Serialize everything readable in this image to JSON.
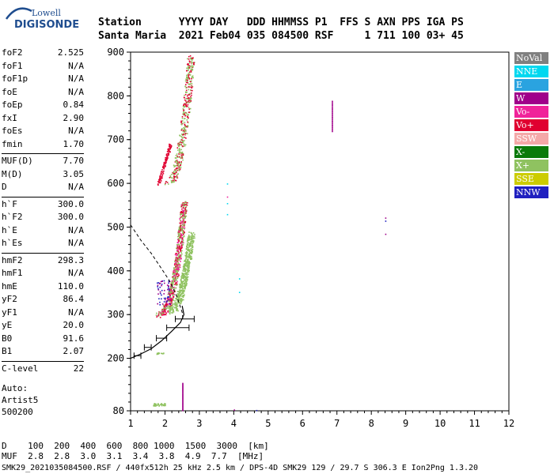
{
  "logo": {
    "top": "Lowell",
    "bottom": "DIGISONDE"
  },
  "header": {
    "row1": "Station      YYYY DAY   DDD HHMMSS P1  FFS S AXN PPS IGA PS",
    "row2": "Santa Maria  2021 Feb04 035 084500 RSF     1 711 100 03+ 45"
  },
  "params": [
    {
      "label": "foF2",
      "value": "2.525"
    },
    {
      "label": "foF1",
      "value": "N/A"
    },
    {
      "label": "foF1p",
      "value": "N/A"
    },
    {
      "label": "foE",
      "value": "N/A"
    },
    {
      "label": "foEp",
      "value": "0.84"
    },
    {
      "label": "fxI",
      "value": "2.90"
    },
    {
      "label": "foEs",
      "value": "N/A"
    },
    {
      "label": "fmin",
      "value": "1.70"
    },
    {
      "sep": true
    },
    {
      "label": "MUF(D)",
      "value": "7.70"
    },
    {
      "label": "M(D)",
      "value": "3.05"
    },
    {
      "label": "D",
      "value": "N/A"
    },
    {
      "sep": true
    },
    {
      "label": "h`F",
      "value": "300.0"
    },
    {
      "label": "h`F2",
      "value": "300.0"
    },
    {
      "label": "h`E",
      "value": "N/A"
    },
    {
      "label": "h`Es",
      "value": "N/A"
    },
    {
      "sep": true
    },
    {
      "label": "hmF2",
      "value": "298.3"
    },
    {
      "label": "hmF1",
      "value": "N/A"
    },
    {
      "label": "hmE",
      "value": "110.0"
    },
    {
      "label": "yF2",
      "value": "86.4"
    },
    {
      "label": "yF1",
      "value": "N/A"
    },
    {
      "label": "yE",
      "value": "20.0"
    },
    {
      "label": "B0",
      "value": "91.6"
    },
    {
      "label": "B1",
      "value": "2.07"
    },
    {
      "sep": true
    },
    {
      "label": "C-level",
      "value": "22"
    }
  ],
  "auto": {
    "line1": "Auto:",
    "line2": "Artist5",
    "line3": "500200"
  },
  "plot": {
    "x_ticks": [
      "1",
      "2",
      "3",
      "4",
      "5",
      "6",
      "7",
      "8",
      "9",
      "10",
      "11",
      "12"
    ],
    "y_ticks": [
      "900",
      "800",
      "700",
      "600",
      "500",
      "400",
      "300",
      "200",
      "80"
    ],
    "xlim": [
      1,
      12
    ],
    "ylim": [
      80,
      900
    ]
  },
  "legend": [
    {
      "label": "NoVal",
      "color": "#808080"
    },
    {
      "label": "NNE",
      "color": "#00d8f0"
    },
    {
      "label": "E",
      "color": "#2aa3e0"
    },
    {
      "label": "W",
      "color": "#a0008a"
    },
    {
      "label": "Vo-",
      "color": "#f0239a"
    },
    {
      "label": "Vo+",
      "color": "#e00030"
    },
    {
      "label": "SSW",
      "color": "#f4a8a8"
    },
    {
      "label": "X-",
      "color": "#0a7a0a"
    },
    {
      "label": "X+",
      "color": "#8fc260"
    },
    {
      "label": "SSE",
      "color": "#cccc00"
    },
    {
      "label": "NNW",
      "color": "#2020c0"
    }
  ],
  "bottom": {
    "row1": "D    100  200  400  600  800 1000  1500  3000  [km]",
    "row2": "MUF  2.8  2.8  3.0  3.1  3.4  3.8  4.9  7.7  [MHz]"
  },
  "footer": "SMK29_2021035084500.RSF / 440fx512h 25 kHz 2.5 km / DPS-4D SMK29 129 / 29.7 S 306.3 E Ion2Png 1.3.20"
}
